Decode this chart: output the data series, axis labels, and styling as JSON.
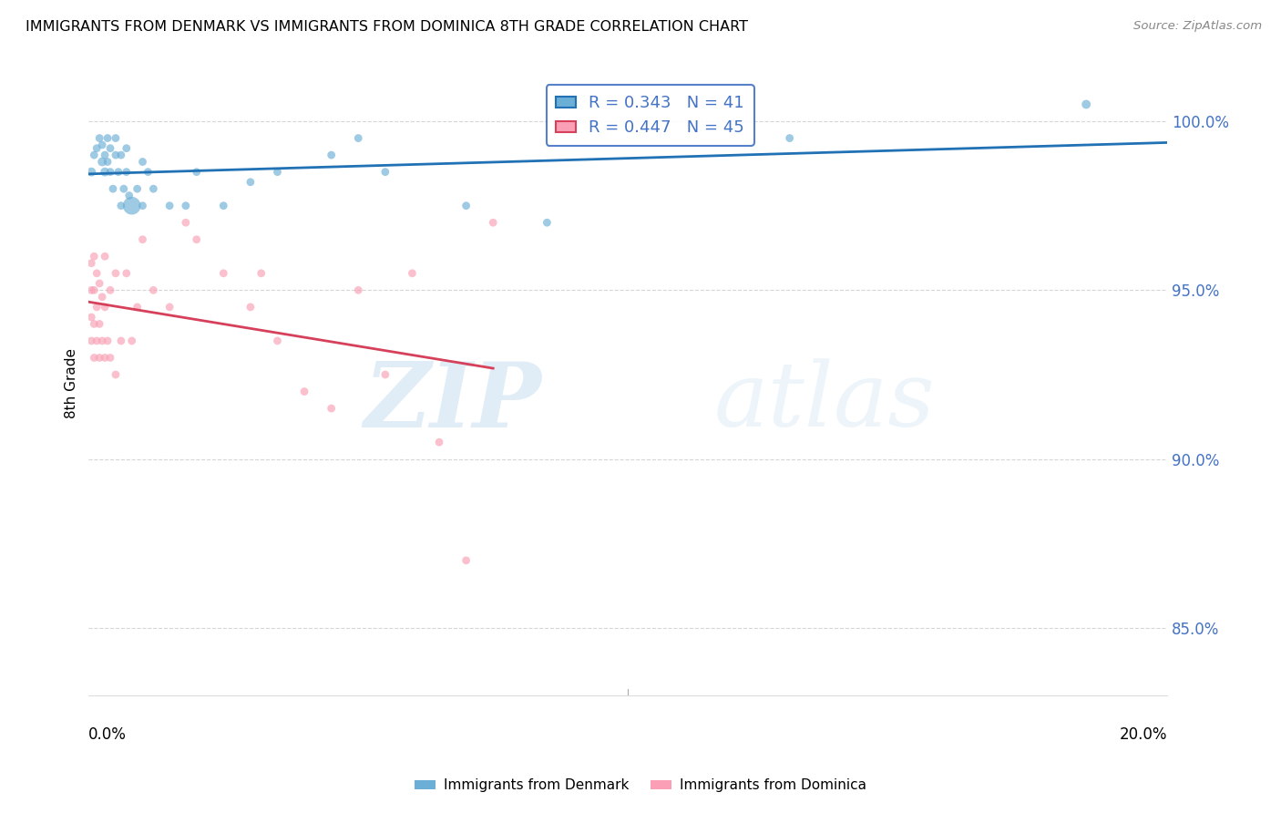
{
  "title": "IMMIGRANTS FROM DENMARK VS IMMIGRANTS FROM DOMINICA 8TH GRADE CORRELATION CHART",
  "source": "Source: ZipAtlas.com",
  "ylabel": "8th Grade",
  "xlim": [
    0.0,
    20.0
  ],
  "ylim": [
    83.0,
    101.5
  ],
  "yticks": [
    85.0,
    90.0,
    95.0,
    100.0
  ],
  "ytick_labels": [
    "85.0%",
    "90.0%",
    "95.0%",
    "100.0%"
  ],
  "denmark_R": 0.343,
  "denmark_N": 41,
  "dominica_R": 0.447,
  "dominica_N": 45,
  "denmark_color": "#6baed6",
  "dominica_color": "#fa9fb5",
  "denmark_line_color": "#2171b5",
  "dominica_line_color": "#d6405a",
  "legend_label_denmark": "Immigrants from Denmark",
  "legend_label_dominica": "Immigrants from Dominica",
  "watermark_zip": "ZIP",
  "watermark_atlas": "atlas",
  "denmark_x": [
    0.05,
    0.1,
    0.15,
    0.2,
    0.25,
    0.25,
    0.3,
    0.3,
    0.35,
    0.35,
    0.4,
    0.4,
    0.45,
    0.5,
    0.5,
    0.55,
    0.6,
    0.6,
    0.65,
    0.7,
    0.7,
    0.75,
    0.8,
    0.9,
    1.0,
    1.0,
    1.1,
    1.2,
    1.5,
    1.8,
    2.0,
    2.5,
    3.0,
    3.5,
    4.5,
    5.0,
    5.5,
    7.0,
    8.5,
    13.0,
    18.5
  ],
  "denmark_y": [
    98.5,
    99.0,
    99.2,
    99.5,
    98.8,
    99.3,
    98.5,
    99.0,
    98.8,
    99.5,
    98.5,
    99.2,
    98.0,
    99.0,
    99.5,
    98.5,
    97.5,
    99.0,
    98.0,
    98.5,
    99.2,
    97.8,
    97.5,
    98.0,
    97.5,
    98.8,
    98.5,
    98.0,
    97.5,
    97.5,
    98.5,
    97.5,
    98.2,
    98.5,
    99.0,
    99.5,
    98.5,
    97.5,
    97.0,
    99.5,
    100.5
  ],
  "denmark_sizes": [
    50,
    40,
    40,
    40,
    50,
    40,
    50,
    40,
    40,
    40,
    40,
    40,
    40,
    40,
    40,
    40,
    40,
    40,
    40,
    40,
    40,
    40,
    200,
    40,
    40,
    40,
    40,
    40,
    40,
    40,
    40,
    40,
    40,
    40,
    40,
    40,
    40,
    40,
    40,
    40,
    50
  ],
  "dominica_x": [
    0.05,
    0.05,
    0.05,
    0.05,
    0.1,
    0.1,
    0.1,
    0.1,
    0.15,
    0.15,
    0.15,
    0.2,
    0.2,
    0.2,
    0.25,
    0.25,
    0.3,
    0.3,
    0.3,
    0.35,
    0.4,
    0.4,
    0.5,
    0.5,
    0.6,
    0.7,
    0.8,
    0.9,
    1.0,
    1.2,
    1.5,
    1.8,
    2.0,
    2.5,
    3.0,
    3.2,
    3.5,
    4.0,
    4.5,
    5.0,
    5.5,
    6.0,
    6.5,
    7.0,
    7.5
  ],
  "dominica_y": [
    93.5,
    94.2,
    95.0,
    95.8,
    93.0,
    94.0,
    95.0,
    96.0,
    93.5,
    94.5,
    95.5,
    93.0,
    94.0,
    95.2,
    93.5,
    94.8,
    93.0,
    94.5,
    96.0,
    93.5,
    93.0,
    95.0,
    92.5,
    95.5,
    93.5,
    95.5,
    93.5,
    94.5,
    96.5,
    95.0,
    94.5,
    97.0,
    96.5,
    95.5,
    94.5,
    95.5,
    93.5,
    92.0,
    91.5,
    95.0,
    92.5,
    95.5,
    90.5,
    87.0,
    97.0
  ],
  "dominica_sizes": [
    40,
    40,
    40,
    40,
    40,
    40,
    40,
    40,
    40,
    40,
    40,
    40,
    40,
    40,
    40,
    40,
    40,
    40,
    40,
    40,
    40,
    40,
    40,
    40,
    40,
    40,
    40,
    40,
    40,
    40,
    40,
    40,
    40,
    40,
    40,
    40,
    40,
    40,
    40,
    40,
    40,
    40,
    40,
    40,
    40
  ]
}
